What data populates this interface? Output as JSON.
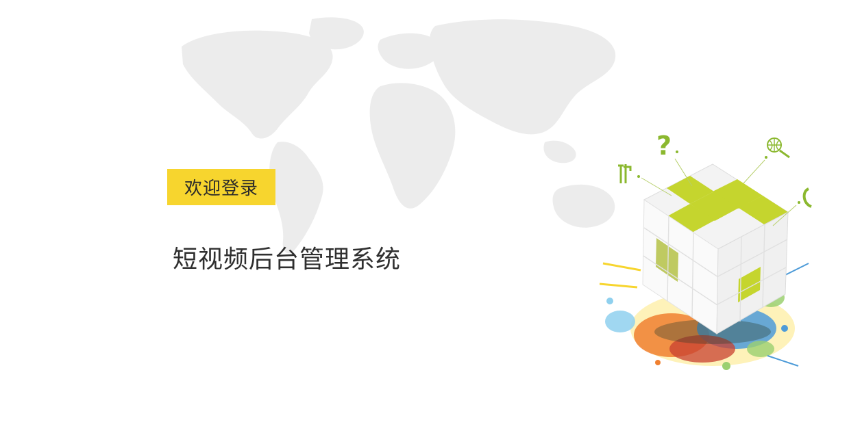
{
  "welcome_label": "欢迎登录",
  "system_title": "短视频后台管理系统",
  "colors": {
    "background": "#ffffff",
    "badge": "#f7d52e",
    "badge_text": "#2a2a2a",
    "title_text": "#2f2f2f",
    "map": "#ececec",
    "cube_accent": "#c5d52e",
    "cube_face": "#f5f5f5"
  },
  "icons": [
    "world-map-icon",
    "question-mark-icon",
    "tools-icon",
    "globe-search-icon",
    "phone-icon",
    "cube-icon"
  ]
}
